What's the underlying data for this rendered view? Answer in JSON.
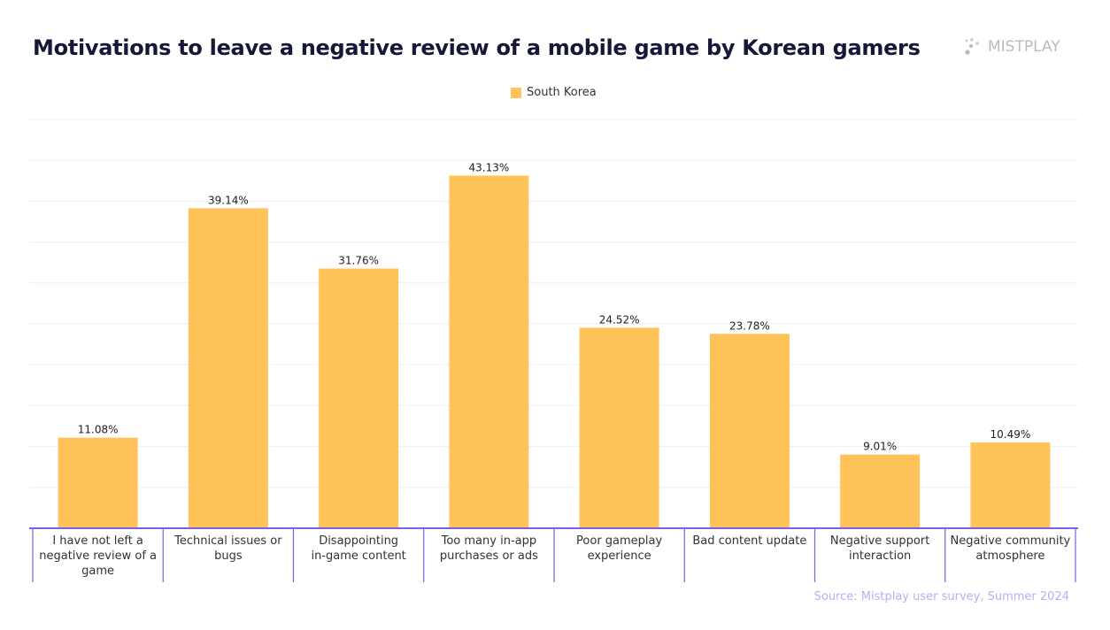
{
  "title": "Motivations to leave a negative review of a mobile game by Korean gamers",
  "logo_text": "MISTPLAY",
  "source": "Source: Mistplay user survey, Summer 2024",
  "chart_data": {
    "type": "bar",
    "title": "Motivations to leave a negative review of a mobile game by Korean gamers",
    "categories": [
      "I have not left a negative review of a game",
      "Technical issues or bugs",
      "Disappointing in-game content",
      "Too many in-app purchases or ads",
      "Poor gameplay experience",
      "Bad content update",
      "Negative support interaction",
      "Negative community atmosphere"
    ],
    "category_lines": [
      [
        "I have not left a",
        "negative review of a",
        "game"
      ],
      [
        "Technical issues or",
        "bugs"
      ],
      [
        "Disappointing",
        "in-game content"
      ],
      [
        "Too many in-app",
        "purchases or ads"
      ],
      [
        "Poor gameplay",
        "experience"
      ],
      [
        "Bad content update"
      ],
      [
        "Negative support",
        "interaction"
      ],
      [
        "Negative community",
        "atmosphere"
      ]
    ],
    "series": [
      {
        "name": "South Korea",
        "values": [
          11.08,
          39.14,
          31.76,
          43.13,
          24.52,
          23.78,
          9.01,
          10.49
        ],
        "color": "#ffc35a"
      }
    ],
    "data_labels": [
      "11.08%",
      "39.14%",
      "31.76%",
      "43.13%",
      "24.52%",
      "23.78%",
      "9.01%",
      "10.49%"
    ],
    "ylim": [
      0,
      50
    ],
    "grid": true,
    "legend_position": "top-center",
    "axis_color": "#7b61e0"
  }
}
